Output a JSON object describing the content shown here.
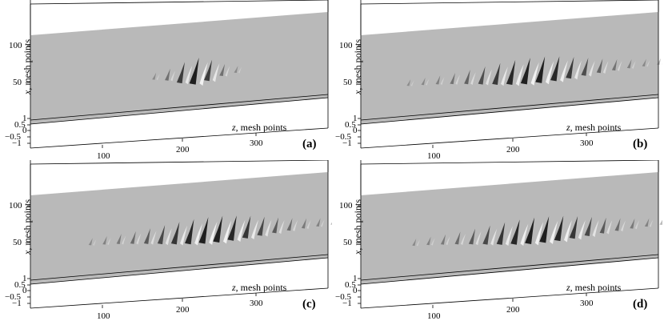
{
  "panels": [
    {
      "id": "a",
      "label": "(a)",
      "packet_center": 200,
      "packet_width": 30,
      "n_waves": 9
    },
    {
      "id": "b",
      "label": "(b)",
      "packet_center": 210,
      "packet_width": 85,
      "n_waves": 22
    },
    {
      "id": "c",
      "label": "(c)",
      "packet_center": 220,
      "packet_width": 90,
      "n_waves": 24
    },
    {
      "id": "d",
      "label": "(d)",
      "packet_center": 215,
      "packet_width": 92,
      "n_waves": 24
    }
  ],
  "axes": {
    "x_label_var": "x",
    "x_label_text": ", mesh points",
    "z_label_var": "z",
    "z_label_text": ", mesh points",
    "x_ticks": [
      "100",
      "50"
    ],
    "z_ticks": [
      "100",
      "200",
      "300"
    ],
    "v_ticks": [
      "1",
      "0.5",
      "0",
      "−0.5",
      "−1"
    ]
  },
  "colors": {
    "surface": "#b9b9b9",
    "dark": "#1e1e1e",
    "light": "#f2f2f2"
  }
}
